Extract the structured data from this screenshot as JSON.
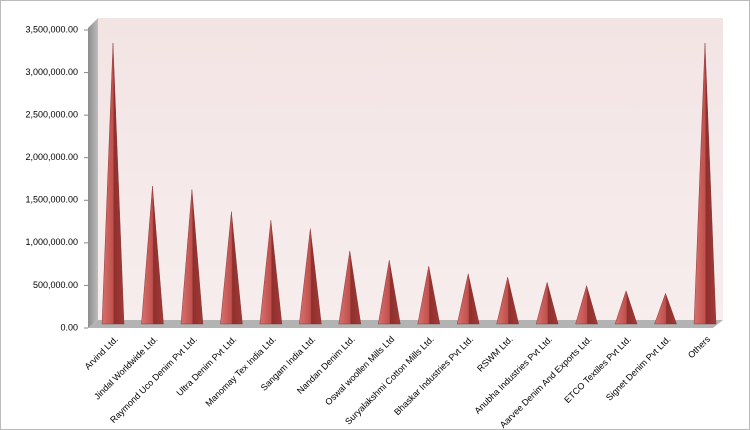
{
  "chart_data": {
    "type": "cone",
    "categories": [
      "Arvind Ltd.",
      "Jindal Worldwide Ltd.",
      "Raymond Uco Denim Pvt Ltd.",
      "Ultra Denim Pvt Ltd.",
      "Manomay Tex India Ltd.",
      "Sangam India Ltd.",
      "Nandan Denim Ltd.",
      "Oswal woollen Mills Ltd",
      "Suryalakshmi Cotton Mills Ltd.",
      "Bhaskar Industries Pvt Ltd.",
      "RSWM Ltd.",
      "Anubha Industries Pvt Ltd.",
      "Aarvee Denim And Exports Ltd.",
      "ETCO Textiles Pvt Ltd.",
      "Signet Denim Pvt Ltd.",
      "Others"
    ],
    "values": [
      3300000,
      1620000,
      1580000,
      1320000,
      1220000,
      1120000,
      860000,
      750000,
      680000,
      590000,
      550000,
      490000,
      450000,
      390000,
      360000,
      3300000
    ],
    "color": "#c0504d",
    "ylim": [
      0,
      3500000
    ],
    "yticks": [
      {
        "value": 0,
        "label": "0.00"
      },
      {
        "value": 500000,
        "label": "500,000.00"
      },
      {
        "value": 1000000,
        "label": "1,000,000.00"
      },
      {
        "value": 1500000,
        "label": "1,500,000.00"
      },
      {
        "value": 2000000,
        "label": "2,000,000.00"
      },
      {
        "value": 2500000,
        "label": "2,500,000.00"
      },
      {
        "value": 3000000,
        "label": "3,000,000.00"
      },
      {
        "value": 3500000,
        "label": "3,500,000.00"
      }
    ]
  }
}
